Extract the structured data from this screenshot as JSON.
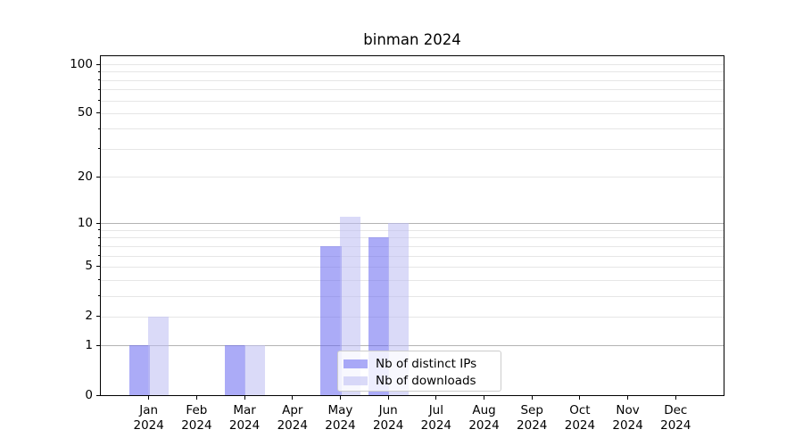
{
  "chart_data": {
    "type": "bar",
    "title": "binman 2024",
    "categories": [
      "Jan",
      "Feb",
      "Mar",
      "Apr",
      "May",
      "Jun",
      "Jul",
      "Aug",
      "Sep",
      "Oct",
      "Nov",
      "Dec"
    ],
    "year_label": "2024",
    "series": [
      {
        "name": "Nb of distinct IPs",
        "color": "#6666f0",
        "alpha": 0.55,
        "values": [
          1,
          0,
          1,
          0,
          7,
          8,
          0,
          0,
          0,
          0,
          0,
          0
        ]
      },
      {
        "name": "Nb of downloads",
        "color": "#bcbcf2",
        "alpha": 0.55,
        "values": [
          2,
          0,
          1,
          0,
          11,
          10,
          0,
          0,
          0,
          0,
          0,
          0
        ]
      }
    ],
    "yscale": "log1p",
    "ylim": [
      0,
      112
    ],
    "yticks_labeled": [
      0,
      1,
      2,
      5,
      10,
      20,
      50,
      100
    ],
    "grid_major_values": [
      1,
      10
    ],
    "grid_minor_values": [
      2,
      3,
      4,
      5,
      6,
      7,
      8,
      9,
      20,
      30,
      40,
      50,
      60,
      70,
      80,
      90,
      100
    ],
    "grid": true,
    "legend_position": "lower-center-inside",
    "colors": {
      "grid_major": "#b3b3b3",
      "grid_minor": "#e6e6e6",
      "spine": "#000000",
      "text": "#000000",
      "legend_border": "#cccccc",
      "legend_bg": "#ffffff"
    }
  }
}
